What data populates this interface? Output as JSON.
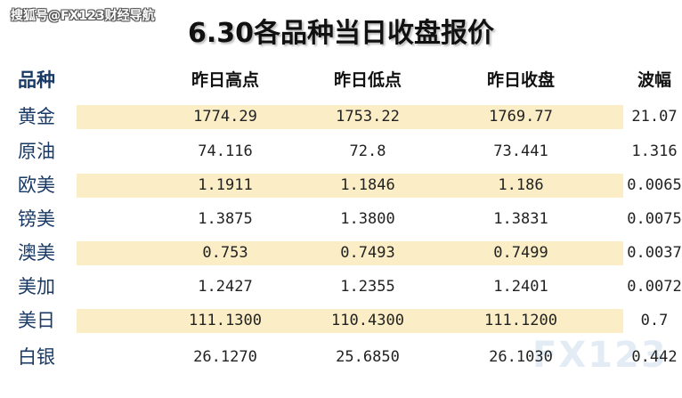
{
  "watermark": "搜狐号@FX123财经导航",
  "title": "6.30各品种当日收盘报价",
  "columns": [
    "品种",
    "昨日高点",
    "昨日低点",
    "昨日收盘",
    "波幅"
  ],
  "rows": [
    {
      "name": "黄金",
      "high": "1774.29",
      "low": "1753.22",
      "close": "1769.77",
      "range": "21.07"
    },
    {
      "name": "原油",
      "high": "74.116",
      "low": "72.8",
      "close": "73.441",
      "range": "1.316"
    },
    {
      "name": "欧美",
      "high": "1.1911",
      "low": "1.1846",
      "close": "1.186",
      "range": "0.0065"
    },
    {
      "name": "镑美",
      "high": "1.3875",
      "low": "1.3800",
      "close": "1.3831",
      "range": "0.0075"
    },
    {
      "name": "澳美",
      "high": "0.753",
      "low": "0.7493",
      "close": "0.7499",
      "range": "0.0037"
    },
    {
      "name": "美加",
      "high": "1.2427",
      "low": "1.2355",
      "close": "1.2401",
      "range": "0.0072"
    },
    {
      "name": "美日",
      "high": "111.1300",
      "low": "110.4300",
      "close": "111.1200",
      "range": "0.7"
    },
    {
      "name": "白银",
      "high": "26.1270",
      "low": "25.6850",
      "close": "26.1030",
      "range": "0.442"
    }
  ],
  "logo": "FX123"
}
